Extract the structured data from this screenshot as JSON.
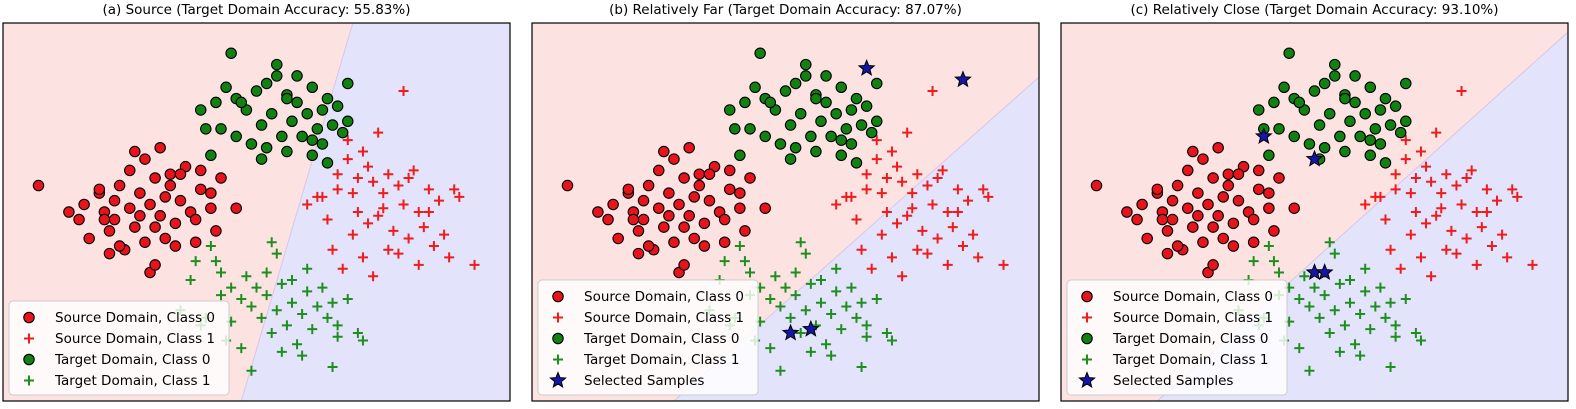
{
  "colors": {
    "source_region": "#fde2e2",
    "target_region": "#e3e3fb",
    "source_class0": "#e8141b",
    "target_class0": "#118211",
    "source_class1": "#ee1c1c",
    "target_class1": "#1e8f1e",
    "selected": "#1515a8",
    "marker_edge": "#000000"
  },
  "legend_labels": {
    "source_class0": "Source Domain, Class 0",
    "source_class1": "Source Domain, Class 1",
    "target_class0": "Target Domain, Class 0",
    "target_class1": "Target Domain, Class 1",
    "selected": "Selected Samples"
  },
  "chart_data": [
    {
      "type": "scatter",
      "title": "(a) Source (Target Domain Accuracy: 55.83%)",
      "xlim": [
        0,
        10
      ],
      "ylim": [
        0,
        10
      ],
      "boundary": [
        [
          6.9,
          10
        ],
        [
          4.7,
          0
        ]
      ],
      "legend_position": "lower-left",
      "show_selected": false,
      "selected": []
    },
    {
      "type": "scatter",
      "title": "(b) Relatively Far (Target Domain Accuracy: 87.07%)",
      "xlim": [
        0,
        10
      ],
      "ylim": [
        0,
        10
      ],
      "boundary": [
        [
          11.2,
          10
        ],
        [
          2.8,
          0
        ]
      ],
      "legend_position": "lower-left",
      "show_selected": true,
      "selected": [
        [
          6.6,
          8.8
        ],
        [
          8.5,
          8.5
        ],
        [
          5.1,
          1.8
        ],
        [
          5.5,
          1.9
        ]
      ]
    },
    {
      "type": "scatter",
      "title": "(c) Relatively Close (Target Domain Accuracy: 93.10%)",
      "xlim": [
        0,
        10
      ],
      "ylim": [
        0,
        10
      ],
      "boundary": [
        [
          10.2,
          10
        ],
        [
          1.9,
          0
        ]
      ],
      "legend_position": "lower-left",
      "show_selected": true,
      "selected": [
        [
          4.0,
          7.0
        ],
        [
          5.0,
          6.4
        ],
        [
          5.0,
          3.4
        ],
        [
          5.2,
          3.4
        ]
      ]
    }
  ],
  "points": {
    "source_class0": [
      [
        0.7,
        5.7
      ],
      [
        1.3,
        5.0
      ],
      [
        1.5,
        4.8
      ],
      [
        1.6,
        5.2
      ],
      [
        1.7,
        4.3
      ],
      [
        1.9,
        5.5
      ],
      [
        2.0,
        5.0
      ],
      [
        2.1,
        4.5
      ],
      [
        2.2,
        4.8
      ],
      [
        2.2,
        5.3
      ],
      [
        2.3,
        5.7
      ],
      [
        2.4,
        4.0
      ],
      [
        2.5,
        5.1
      ],
      [
        2.6,
        4.6
      ],
      [
        2.7,
        4.9
      ],
      [
        2.7,
        5.5
      ],
      [
        2.8,
        4.2
      ],
      [
        2.9,
        5.2
      ],
      [
        3.0,
        4.6
      ],
      [
        3.0,
        5.9
      ],
      [
        3.1,
        4.9
      ],
      [
        3.2,
        4.3
      ],
      [
        3.2,
        5.4
      ],
      [
        3.3,
        6.0
      ],
      [
        3.4,
        4.7
      ],
      [
        3.5,
        5.3
      ],
      [
        3.6,
        6.2
      ],
      [
        3.7,
        5.0
      ],
      [
        3.8,
        4.8
      ],
      [
        3.9,
        5.6
      ],
      [
        4.1,
        5.1
      ],
      [
        4.2,
        4.5
      ],
      [
        4.3,
        5.9
      ],
      [
        2.5,
        6.1
      ],
      [
        2.8,
        6.4
      ],
      [
        3.1,
        6.7
      ],
      [
        3.3,
        5.7
      ],
      [
        2.9,
        3.4
      ],
      [
        3.0,
        3.6
      ],
      [
        3.4,
        4.1
      ],
      [
        2.1,
        3.9
      ],
      [
        2.6,
        6.6
      ],
      [
        3.5,
        6.0
      ],
      [
        3.9,
        6.1
      ],
      [
        4.1,
        5.5
      ],
      [
        4.6,
        5.1
      ],
      [
        3.8,
        4.2
      ],
      [
        1.9,
        5.6
      ],
      [
        2.3,
        4.1
      ],
      [
        2.0,
        4.8
      ]
    ],
    "source_class1": [
      [
        6.3,
        5.4
      ],
      [
        6.6,
        6.0
      ],
      [
        6.8,
        6.4
      ],
      [
        6.9,
        5.5
      ],
      [
        7.0,
        5.0
      ],
      [
        7.2,
        6.2
      ],
      [
        7.3,
        5.8
      ],
      [
        7.4,
        4.9
      ],
      [
        7.5,
        5.5
      ],
      [
        7.6,
        6.0
      ],
      [
        7.7,
        4.5
      ],
      [
        7.8,
        5.7
      ],
      [
        7.9,
        5.2
      ],
      [
        8.0,
        4.3
      ],
      [
        8.1,
        6.1
      ],
      [
        8.2,
        5.0
      ],
      [
        8.3,
        4.6
      ],
      [
        8.4,
        5.6
      ],
      [
        8.5,
        4.1
      ],
      [
        8.6,
        5.3
      ],
      [
        8.7,
        4.4
      ],
      [
        8.8,
        3.8
      ],
      [
        6.5,
        4.0
      ],
      [
        6.9,
        4.4
      ],
      [
        6.7,
        3.5
      ],
      [
        7.1,
        3.8
      ],
      [
        7.4,
        7.1
      ],
      [
        6.8,
        6.9
      ],
      [
        7.2,
        4.7
      ],
      [
        7.6,
        4.0
      ],
      [
        8.0,
        5.9
      ],
      [
        8.2,
        3.6
      ],
      [
        9.0,
        5.4
      ],
      [
        9.3,
        3.6
      ],
      [
        7.9,
        8.2
      ],
      [
        6.0,
        5.2
      ],
      [
        6.4,
        4.8
      ],
      [
        7.0,
        5.9
      ],
      [
        7.3,
        3.3
      ],
      [
        7.8,
        3.9
      ],
      [
        8.4,
        5.0
      ],
      [
        7.1,
        6.6
      ],
      [
        6.2,
        5.4
      ],
      [
        7.5,
        5.1
      ],
      [
        6.6,
        5.6
      ],
      [
        8.9,
        5.6
      ]
    ],
    "target_class0": [
      [
        4.5,
        9.2
      ],
      [
        5.2,
        8.4
      ],
      [
        5.4,
        8.6
      ],
      [
        5.6,
        8.1
      ],
      [
        4.2,
        7.9
      ],
      [
        4.4,
        8.3
      ],
      [
        4.6,
        8.0
      ],
      [
        4.8,
        7.7
      ],
      [
        5.0,
        8.2
      ],
      [
        5.1,
        7.3
      ],
      [
        5.3,
        7.6
      ],
      [
        5.5,
        7.0
      ],
      [
        5.7,
        7.4
      ],
      [
        5.8,
        7.9
      ],
      [
        6.0,
        7.6
      ],
      [
        6.1,
        8.3
      ],
      [
        6.2,
        7.2
      ],
      [
        6.3,
        7.7
      ],
      [
        6.4,
        8.0
      ],
      [
        6.5,
        7.3
      ],
      [
        6.6,
        7.8
      ],
      [
        6.7,
        7.1
      ],
      [
        6.8,
        7.4
      ],
      [
        4.3,
        7.2
      ],
      [
        4.6,
        7.0
      ],
      [
        4.1,
        6.5
      ],
      [
        4.9,
        6.8
      ],
      [
        5.2,
        6.7
      ],
      [
        5.6,
        6.6
      ],
      [
        5.9,
        7.0
      ],
      [
        6.1,
        6.9
      ],
      [
        6.3,
        6.8
      ],
      [
        3.9,
        7.7
      ],
      [
        4.0,
        7.2
      ],
      [
        5.4,
        8.9
      ],
      [
        5.6,
        8.0
      ],
      [
        5.8,
        8.6
      ],
      [
        6.8,
        8.4
      ],
      [
        6.1,
        6.5
      ],
      [
        6.4,
        6.3
      ],
      [
        5.1,
        6.4
      ],
      [
        4.7,
        7.9
      ]
    ],
    "target_class1": [
      [
        3.8,
        3.7
      ],
      [
        4.1,
        4.1
      ],
      [
        4.3,
        3.4
      ],
      [
        4.5,
        3.0
      ],
      [
        4.7,
        2.7
      ],
      [
        4.8,
        3.3
      ],
      [
        4.9,
        2.5
      ],
      [
        5.0,
        3.0
      ],
      [
        5.1,
        2.2
      ],
      [
        5.2,
        2.8
      ],
      [
        5.3,
        1.8
      ],
      [
        5.4,
        2.4
      ],
      [
        5.5,
        3.1
      ],
      [
        5.6,
        2.0
      ],
      [
        5.7,
        2.6
      ],
      [
        5.8,
        1.5
      ],
      [
        5.9,
        2.3
      ],
      [
        6.0,
        2.9
      ],
      [
        6.1,
        1.9
      ],
      [
        6.2,
        2.5
      ],
      [
        6.3,
        3.0
      ],
      [
        6.4,
        2.2
      ],
      [
        6.5,
        2.6
      ],
      [
        6.6,
        2.0
      ],
      [
        6.8,
        2.7
      ],
      [
        7.1,
        1.6
      ],
      [
        3.5,
        2.4
      ],
      [
        3.9,
        2.0
      ],
      [
        4.3,
        2.8
      ],
      [
        4.0,
        2.2
      ],
      [
        4.5,
        2.1
      ],
      [
        4.7,
        1.4
      ],
      [
        4.9,
        0.8
      ],
      [
        5.5,
        1.3
      ],
      [
        5.9,
        1.2
      ],
      [
        6.0,
        3.5
      ],
      [
        6.6,
        1.7
      ],
      [
        7.0,
        1.8
      ],
      [
        3.7,
        3.2
      ],
      [
        5.3,
        4.2
      ],
      [
        5.4,
        3.9
      ],
      [
        4.2,
        3.7
      ],
      [
        4.4,
        1.6
      ],
      [
        6.5,
        0.9
      ],
      [
        5.2,
        3.4
      ],
      [
        5.7,
        3.2
      ]
    ]
  }
}
